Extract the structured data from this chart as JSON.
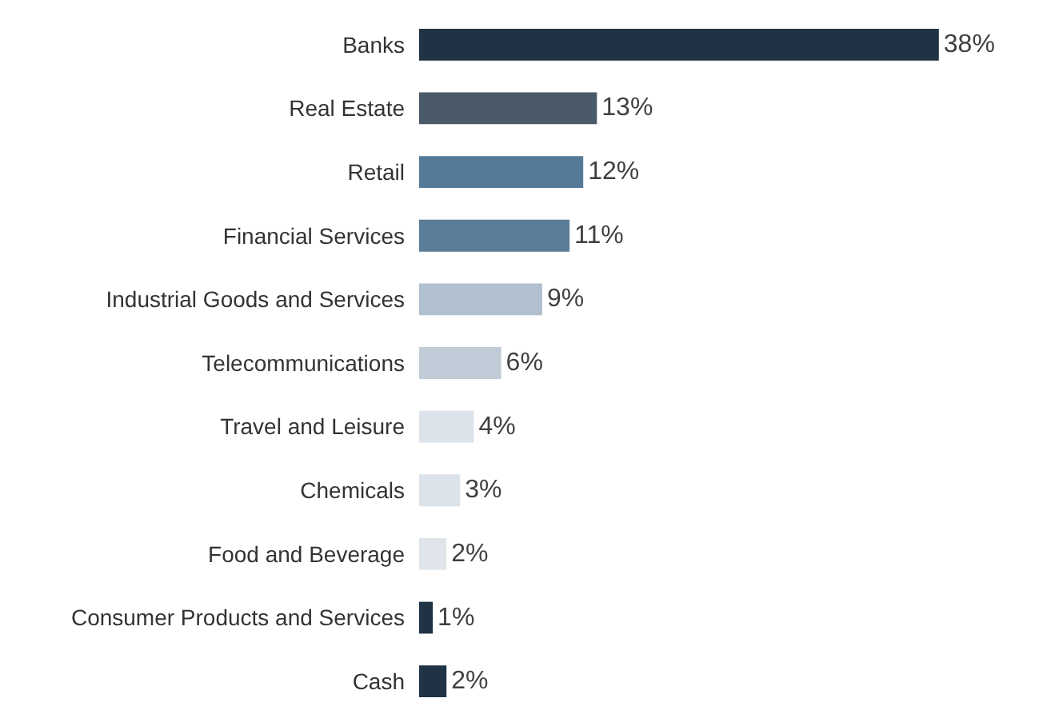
{
  "chart_data": {
    "type": "bar",
    "orientation": "horizontal",
    "categories": [
      "Banks",
      "Real Estate",
      "Retail",
      "Financial Services",
      "Industrial Goods and Services",
      "Telecommunications",
      "Travel and Leisure",
      "Chemicals",
      "Food and Beverage",
      "Consumer Products and Services",
      "Cash"
    ],
    "values": [
      38,
      13,
      12,
      11,
      9,
      6,
      4,
      3,
      2,
      1,
      2
    ],
    "value_labels": [
      "38%",
      "13%",
      "12%",
      "11%",
      "9%",
      "6%",
      "4%",
      "3%",
      "2%",
      "1%",
      "2%"
    ],
    "colors": [
      "#1f3345",
      "#4a5a69",
      "#557a99",
      "#5a7d9a",
      "#b0c0ce",
      "#bfccd7",
      "#dde3ea",
      "#dde3ea",
      "#dfe5eb",
      "#1f3345",
      "#1f3345"
    ],
    "tick_labels": "y"
  }
}
